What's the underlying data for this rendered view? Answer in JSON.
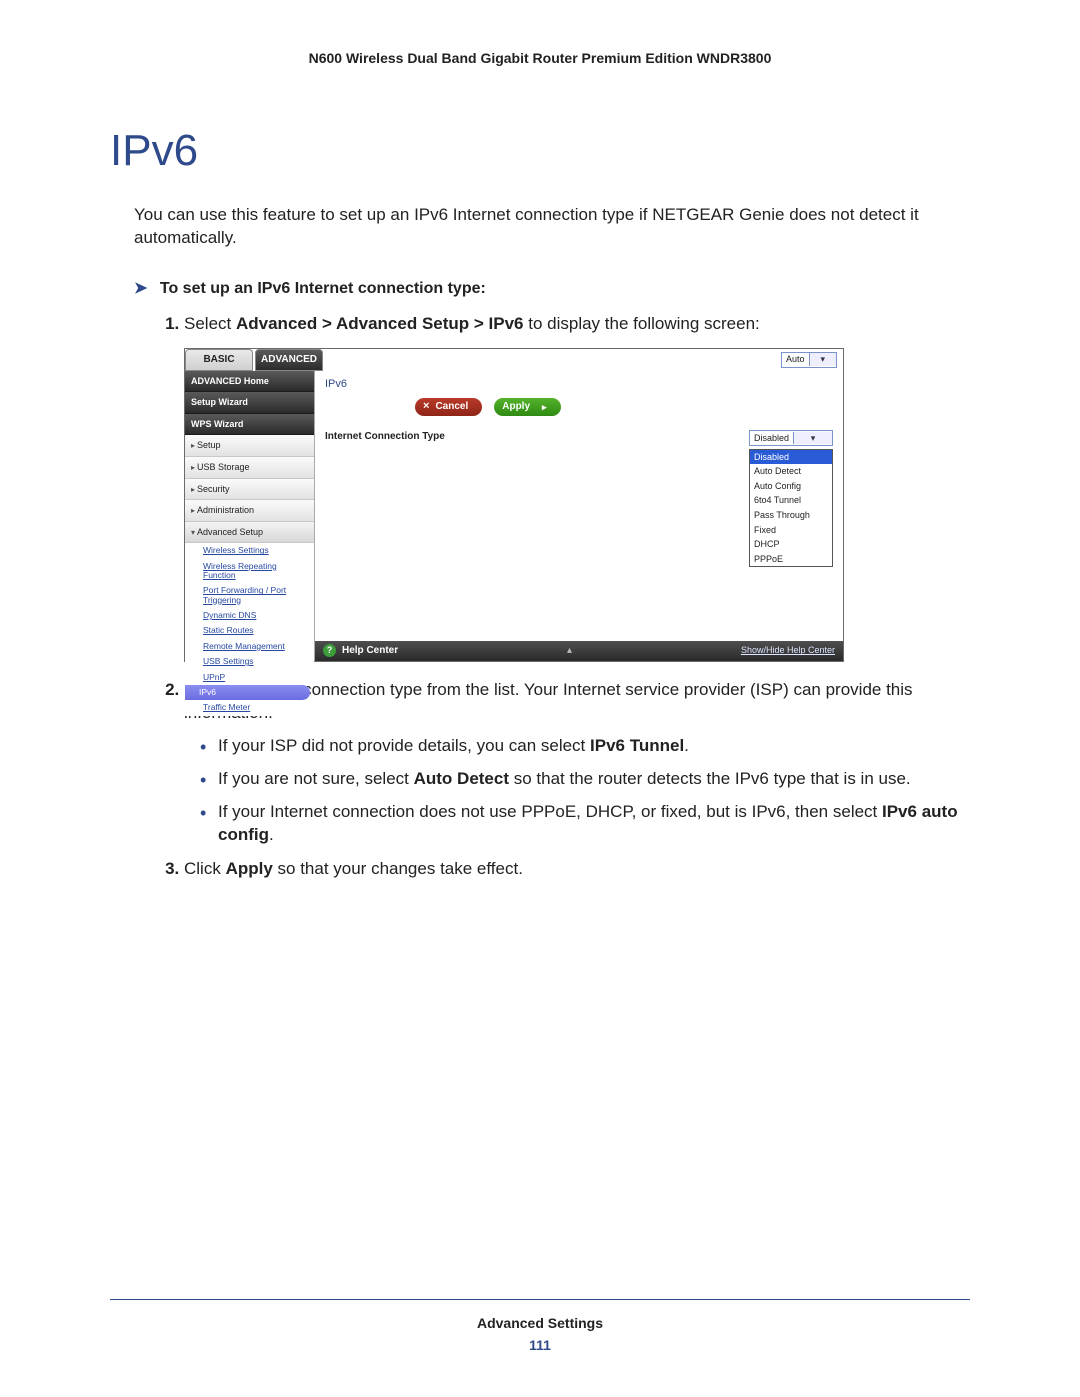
{
  "doc": {
    "header": "N600 Wireless Dual Band Gigabit Router Premium Edition WNDR3800",
    "h1": "IPv6",
    "intro": "You can use this feature to set up an IPv6 Internet connection type if NETGEAR Genie does not detect it automatically.",
    "task_heading": "To set up an IPv6 Internet connection type:",
    "step1_pre": "Select ",
    "step1_b": "Advanced > Advanced Setup > IPv6",
    "step1_post": " to display the following screen:",
    "step2": "Select the IPv6 connection type from the list. Your Internet service provider (ISP) can provide this information.",
    "b1_pre": "If your ISP did not provide details, you can select ",
    "b1_b": "IPv6 Tunnel",
    "b1_post": ".",
    "b2_pre": "If you are not sure, select ",
    "b2_b": "Auto Detect",
    "b2_post": " so that the router detects the IPv6 type that is in use.",
    "b3_pre": "If your Internet connection does not use PPPoE, DHCP, or fixed, but is IPv6, then select ",
    "b3_b": "IPv6 auto config",
    "b3_post": ".",
    "step3_pre": "Click ",
    "step3_b": "Apply",
    "step3_post": " so that your changes take effect.",
    "footer_section": "Advanced Settings",
    "footer_page": "111"
  },
  "ui": {
    "tabs": {
      "basic": "BASIC",
      "advanced": "ADVANCED"
    },
    "top_select": "Auto",
    "side_primary": [
      "ADVANCED Home",
      "Setup Wizard",
      "WPS Wizard"
    ],
    "side_sections": [
      "Setup",
      "USB Storage",
      "Security",
      "Administration",
      "Advanced Setup"
    ],
    "adv_sub": [
      "Wireless Settings",
      "Wireless Repeating Function",
      "Port Forwarding / Port Triggering",
      "Dynamic DNS",
      "Static Routes",
      "Remote Management",
      "USB Settings",
      "UPnP",
      "IPv6",
      "Traffic Meter"
    ],
    "panel_title": "IPv6",
    "buttons": {
      "cancel": "Cancel",
      "apply": "Apply"
    },
    "form_label": "Internet Connection Type",
    "select_value": "Disabled",
    "options": [
      "Disabled",
      "Auto Detect",
      "Auto Config",
      "6to4 Tunnel",
      "Pass Through",
      "Fixed",
      "DHCP",
      "PPPoE"
    ],
    "help_label": "Help Center",
    "help_toggle": "Show/Hide Help Center"
  },
  "style": {
    "accent": "#2e4a8a",
    "btn_green": "#3fa020",
    "btn_red": "#a82e1e",
    "select_hl": "#2a5bd7"
  }
}
